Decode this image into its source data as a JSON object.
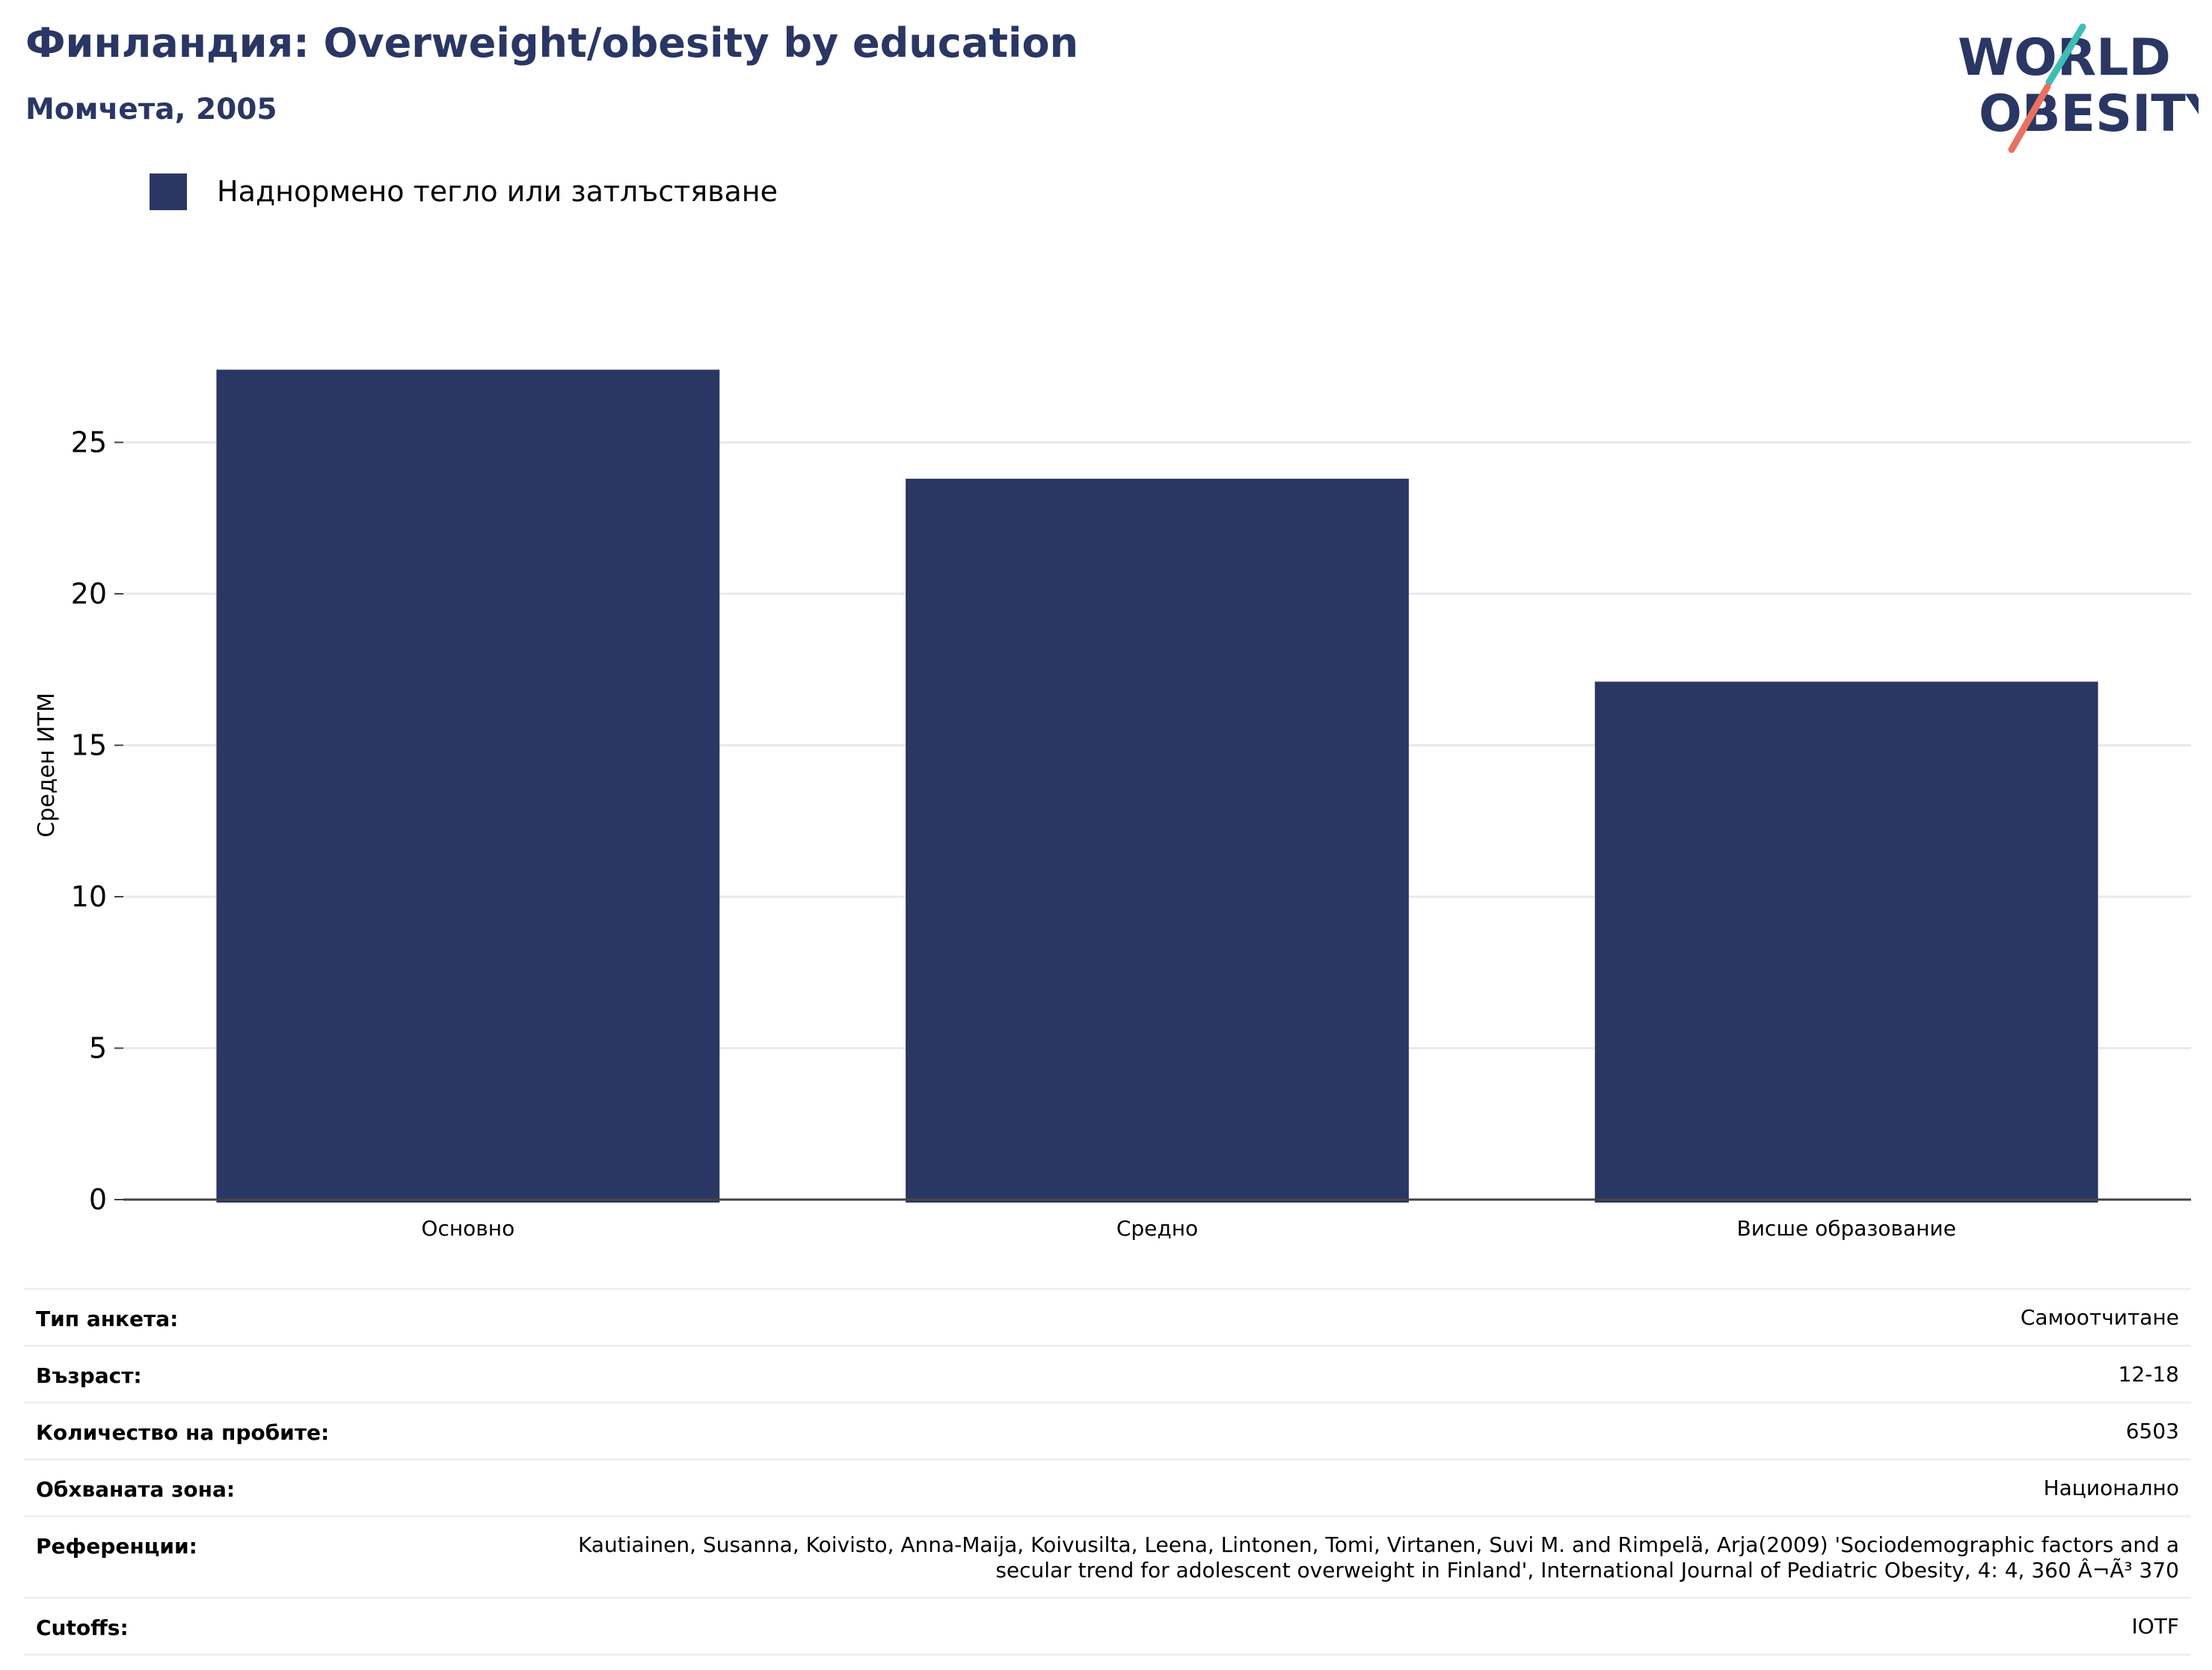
{
  "header": {
    "title": "Финландия: Overweight/obesity by education",
    "subtitle": "Момчета, 2005"
  },
  "logo": {
    "line1": "WORLD",
    "line2": "OBESITY",
    "text_color": "#2a3663",
    "accent_teal": "#3dbdb6",
    "accent_coral": "#e8715f"
  },
  "legend": {
    "label": "Наднормено тегло или затлъстяване",
    "color": "#2a3663"
  },
  "chart_data": {
    "type": "bar",
    "categories": [
      "Основно",
      "Средно",
      "Висше образование"
    ],
    "series": [
      {
        "name": "Наднормено тегло или затлъстяване",
        "values": [
          27.4,
          23.8,
          17.1
        ],
        "color": "#2a3663"
      }
    ],
    "ylabel": "Среден ИТМ",
    "xlabel": "",
    "ylim": [
      0,
      30
    ],
    "yticks": [
      0,
      5,
      10,
      15,
      20,
      25
    ],
    "grid": true
  },
  "info": {
    "rows": [
      {
        "label": "Тип анкета:",
        "value": "Самоотчитане"
      },
      {
        "label": "Възраст:",
        "value": "12-18"
      },
      {
        "label": "Количество на пробите:",
        "value": "6503"
      },
      {
        "label": "Обхваната зона:",
        "value": "Национално"
      },
      {
        "label": "Референции:",
        "value": "Kautiainen, Susanna, Koivisto, Anna-Maija, Koivusilta, Leena, Lintonen, Tomi, Virtanen, Suvi M. and Rimpelä, Arja(2009) 'Sociodemographic factors and a secular trend for adolescent overweight in Finland', International Journal of Pediatric Obesity, 4: 4, 360 Â¬Ã³ 370"
      },
      {
        "label": "Cutoffs:",
        "value": "IOTF"
      }
    ]
  }
}
